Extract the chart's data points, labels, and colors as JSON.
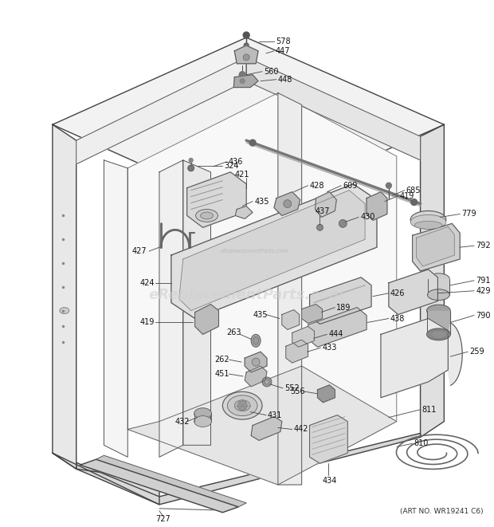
{
  "art_no_text": "(ART NO. WR19241 C6)",
  "watermark": "eReplacementParts.com",
  "background_color": "#ffffff",
  "fig_width": 6.2,
  "fig_height": 6.61,
  "dpi": 100,
  "label_fontsize": 7.0,
  "watermark_color": "#d0d0d0",
  "watermark_fontsize": 13,
  "art_no_fontsize": 6.5
}
